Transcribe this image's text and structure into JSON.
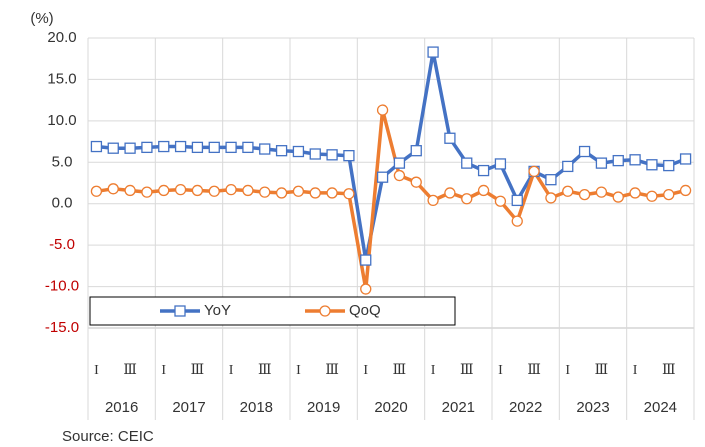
{
  "chart_data": {
    "type": "line",
    "y_axis_label": "(%)",
    "source": "Source: CEIC",
    "categories": [
      "I",
      null,
      "Ⅲ",
      null,
      "I",
      null,
      "Ⅲ",
      null,
      "I",
      null,
      "Ⅲ",
      null,
      "I",
      null,
      "Ⅲ",
      null,
      "I",
      null,
      "Ⅲ",
      null,
      "I",
      null,
      "Ⅲ",
      null,
      "I",
      null,
      "Ⅲ",
      null,
      "I",
      null,
      "Ⅲ",
      null,
      "I",
      null,
      "Ⅲ",
      null
    ],
    "year_labels": [
      "2016",
      "2017",
      "2018",
      "2019",
      "2020",
      "2021",
      "2022",
      "2023",
      "2024"
    ],
    "series": [
      {
        "name": "YoY",
        "color": "#4472c4",
        "marker": "square",
        "values": [
          6.9,
          6.7,
          6.7,
          6.8,
          6.9,
          6.9,
          6.8,
          6.8,
          6.8,
          6.8,
          6.6,
          6.4,
          6.3,
          6.0,
          5.9,
          5.8,
          -6.8,
          3.2,
          4.9,
          6.4,
          18.3,
          7.9,
          4.9,
          4.0,
          4.8,
          0.4,
          3.9,
          2.9,
          4.5,
          6.3,
          4.9,
          5.2,
          5.3,
          4.7,
          4.6,
          5.4
        ]
      },
      {
        "name": "QoQ",
        "color": "#ed7d31",
        "marker": "circle",
        "values": [
          1.5,
          1.8,
          1.6,
          1.4,
          1.6,
          1.7,
          1.6,
          1.5,
          1.7,
          1.6,
          1.4,
          1.3,
          1.5,
          1.3,
          1.3,
          1.2,
          -10.3,
          11.3,
          3.4,
          2.6,
          0.4,
          1.3,
          0.6,
          1.6,
          0.3,
          -2.1,
          3.9,
          0.7,
          1.5,
          1.1,
          1.4,
          0.8,
          1.3,
          0.9,
          1.1,
          1.6
        ]
      }
    ],
    "ylim": [
      -15,
      20
    ],
    "yticks": [
      {
        "value": -15,
        "label": "-15.0"
      },
      {
        "value": -10,
        "label": "-10.0"
      },
      {
        "value": -5,
        "label": "-5.0"
      },
      {
        "value": 0,
        "label": "0.0"
      },
      {
        "value": 5,
        "label": "5.0"
      },
      {
        "value": 10,
        "label": "10.0"
      },
      {
        "value": 15,
        "label": "15.0"
      },
      {
        "value": 20,
        "label": "20.0"
      }
    ],
    "negative_tick_color": "#c00000",
    "grid": true
  }
}
